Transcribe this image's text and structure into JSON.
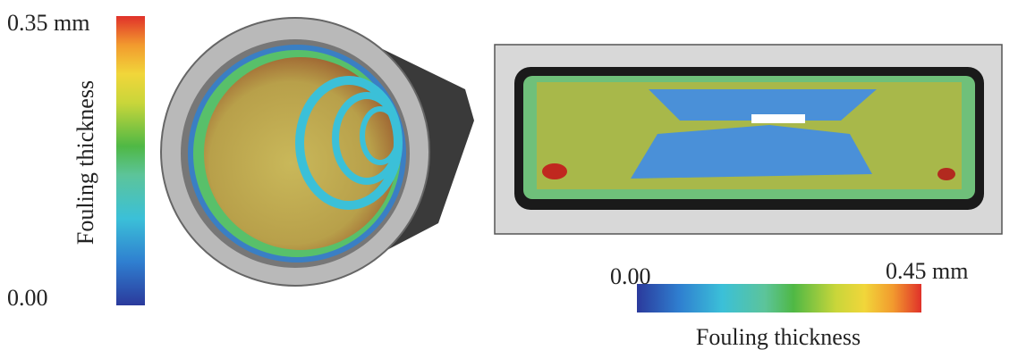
{
  "left_colorbar": {
    "max_label": "0.35 mm",
    "min_label": "0.00",
    "title": "Fouling thickness"
  },
  "right_colorbar": {
    "min_label": "0.00",
    "max_label": "0.45 mm",
    "title": "Fouling thickness"
  }
}
